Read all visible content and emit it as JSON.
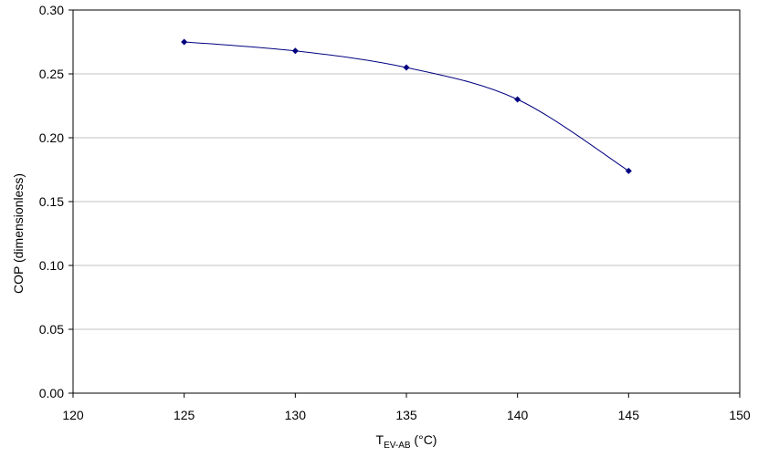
{
  "chart_data": {
    "type": "line",
    "title": "",
    "xlabel": {
      "main": "T",
      "subscript": "EV-AB",
      "suffix": " (°C)"
    },
    "ylabel": "COP (dimensionless)",
    "xlim": [
      120,
      150
    ],
    "ylim": [
      0,
      0.3
    ],
    "x_ticks": [
      "120",
      "125",
      "130",
      "135",
      "140",
      "145",
      "150"
    ],
    "y_ticks": [
      "0.00",
      "0.05",
      "0.10",
      "0.15",
      "0.20",
      "0.25",
      "0.30"
    ],
    "grid": "horizontal",
    "legend": "none",
    "series": [
      {
        "color": "#000080",
        "marker": "diamond",
        "smooth": true,
        "x": [
          125,
          130,
          135,
          140,
          145
        ],
        "y": [
          0.275,
          0.268,
          0.255,
          0.23,
          0.174
        ]
      }
    ]
  }
}
